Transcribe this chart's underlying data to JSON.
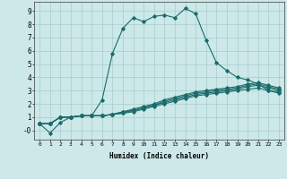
{
  "xlabel": "Humidex (Indice chaleur)",
  "xlim": [
    -0.5,
    23.5
  ],
  "ylim": [
    -0.7,
    9.7
  ],
  "xticks": [
    0,
    1,
    2,
    3,
    4,
    5,
    6,
    7,
    8,
    9,
    10,
    11,
    12,
    13,
    14,
    15,
    16,
    17,
    18,
    19,
    20,
    21,
    22,
    23
  ],
  "yticks": [
    0,
    1,
    2,
    3,
    4,
    5,
    6,
    7,
    8,
    9
  ],
  "ytick_labels": [
    "-0",
    "1",
    "2",
    "3",
    "4",
    "5",
    "6",
    "7",
    "8",
    "9"
  ],
  "background_color": "#cce8e8",
  "grid_color": "#aacccc",
  "line_color": "#1a6b6b",
  "lines_x": [
    [
      0,
      1,
      2,
      3,
      4,
      5,
      6,
      7,
      8,
      9,
      10,
      11,
      12,
      13,
      14,
      15,
      16,
      17,
      18,
      19,
      20,
      21,
      22,
      23
    ],
    [
      0,
      1,
      2,
      3,
      4,
      5,
      6,
      7,
      8,
      9,
      10,
      11,
      12,
      13,
      14,
      15,
      16,
      17,
      18,
      19,
      20,
      21,
      22,
      23
    ],
    [
      0,
      1,
      2,
      3,
      4,
      5,
      6,
      7,
      8,
      9,
      10,
      11,
      12,
      13,
      14,
      15,
      16,
      17,
      18,
      19,
      20,
      21,
      22,
      23
    ],
    [
      0,
      1,
      2,
      3,
      4,
      5,
      6,
      7,
      8,
      9,
      10,
      11,
      12,
      13,
      14,
      15,
      16,
      17,
      18,
      19,
      20,
      21,
      22,
      23
    ],
    [
      0,
      1,
      2,
      3,
      4,
      5,
      6,
      7,
      8,
      9,
      10,
      11,
      12,
      13,
      14,
      15,
      16,
      17,
      18,
      19,
      20,
      21,
      22,
      23
    ]
  ],
  "lines_y": [
    [
      0.5,
      -0.2,
      0.6,
      1.0,
      1.1,
      1.1,
      2.3,
      5.8,
      7.7,
      8.5,
      8.2,
      8.6,
      8.7,
      8.5,
      9.2,
      8.8,
      6.8,
      5.1,
      4.5,
      4.0,
      3.8,
      3.5,
      3.0,
      2.9
    ],
    [
      0.5,
      0.5,
      1.0,
      1.0,
      1.1,
      1.1,
      1.1,
      1.2,
      1.3,
      1.4,
      1.6,
      1.8,
      2.0,
      2.2,
      2.4,
      2.6,
      2.7,
      2.8,
      2.9,
      3.0,
      3.1,
      3.2,
      3.0,
      2.8
    ],
    [
      0.5,
      0.5,
      1.0,
      1.0,
      1.1,
      1.1,
      1.1,
      1.2,
      1.3,
      1.5,
      1.7,
      1.9,
      2.1,
      2.3,
      2.5,
      2.7,
      2.8,
      2.9,
      3.0,
      3.1,
      3.3,
      3.4,
      3.2,
      3.0
    ],
    [
      0.5,
      0.5,
      1.0,
      1.0,
      1.1,
      1.1,
      1.1,
      1.2,
      1.4,
      1.5,
      1.7,
      1.9,
      2.2,
      2.4,
      2.6,
      2.8,
      2.9,
      3.0,
      3.1,
      3.2,
      3.4,
      3.5,
      3.3,
      3.1
    ],
    [
      0.5,
      0.5,
      1.0,
      1.0,
      1.1,
      1.1,
      1.1,
      1.2,
      1.4,
      1.6,
      1.8,
      2.0,
      2.3,
      2.5,
      2.7,
      2.9,
      3.0,
      3.1,
      3.2,
      3.3,
      3.5,
      3.6,
      3.4,
      3.2
    ]
  ]
}
